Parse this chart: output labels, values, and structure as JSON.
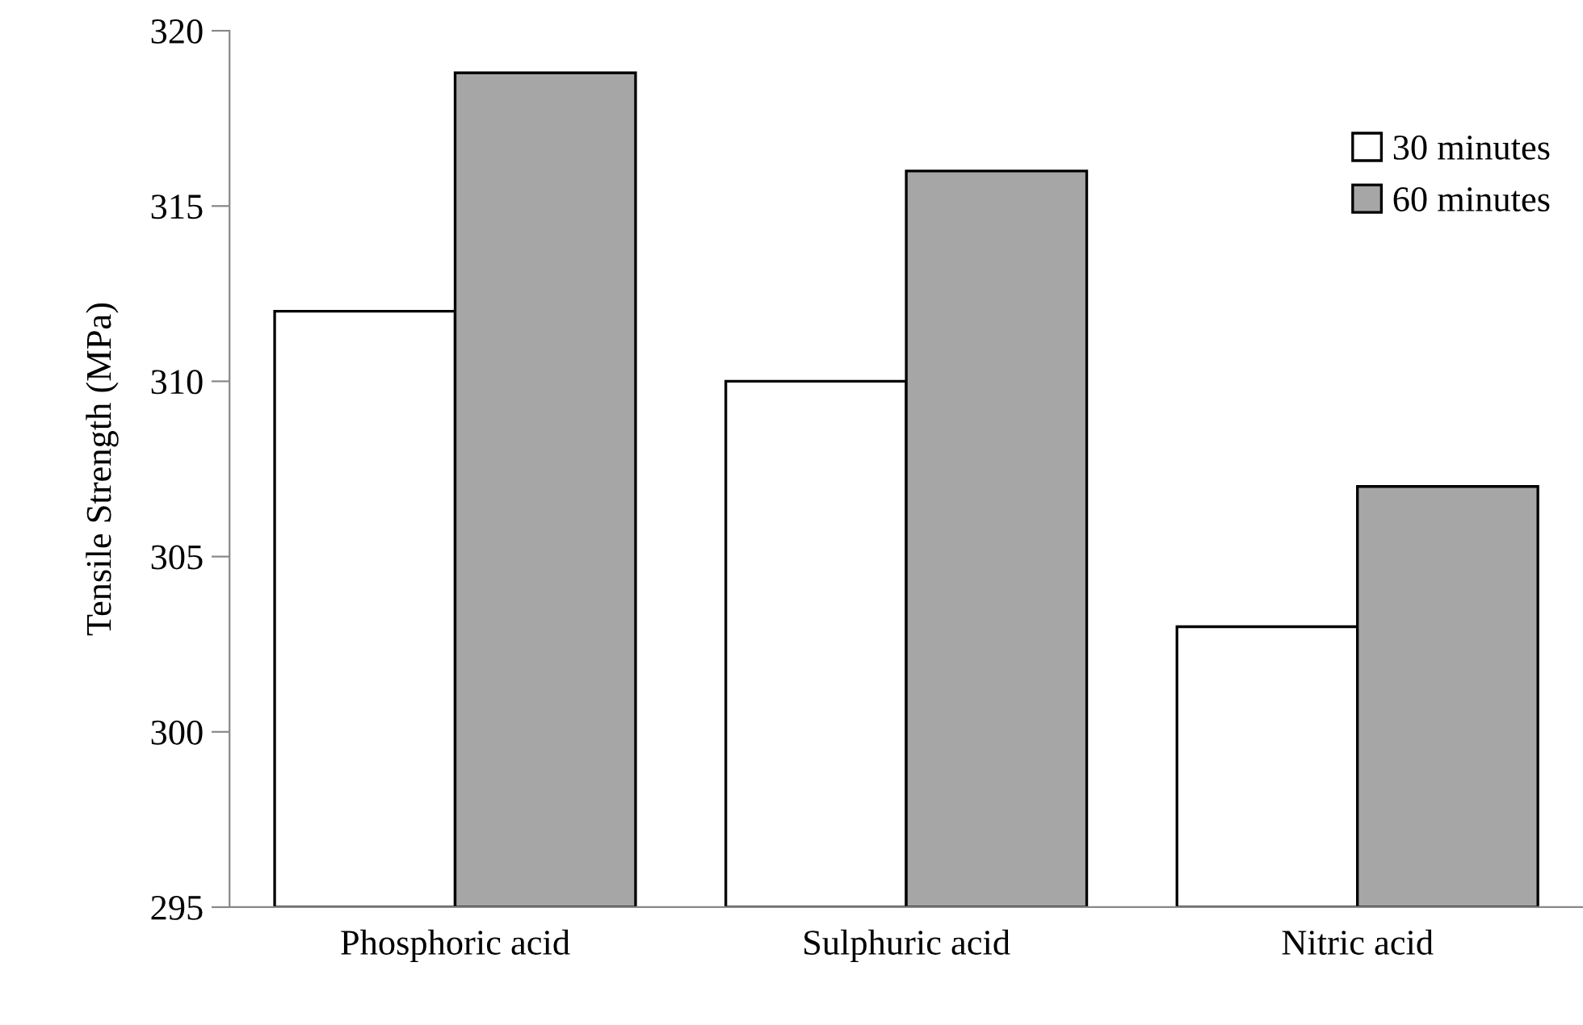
{
  "chart_data": {
    "type": "bar",
    "ylabel": "Tensile Strength (MPa)",
    "categories": [
      "Phosphoric acid",
      "Sulphuric acid",
      "Nitric acid"
    ],
    "series": [
      {
        "name": "30 minutes",
        "color": "#ffffff",
        "values": [
          312,
          310,
          303
        ]
      },
      {
        "name": "60 minutes",
        "color": "#a6a6a6",
        "values": [
          318.8,
          316,
          307
        ]
      }
    ],
    "ylim": [
      295,
      320
    ],
    "yticks": [
      295,
      300,
      305,
      310,
      315,
      320
    ],
    "grid": false,
    "legend": "top right"
  }
}
